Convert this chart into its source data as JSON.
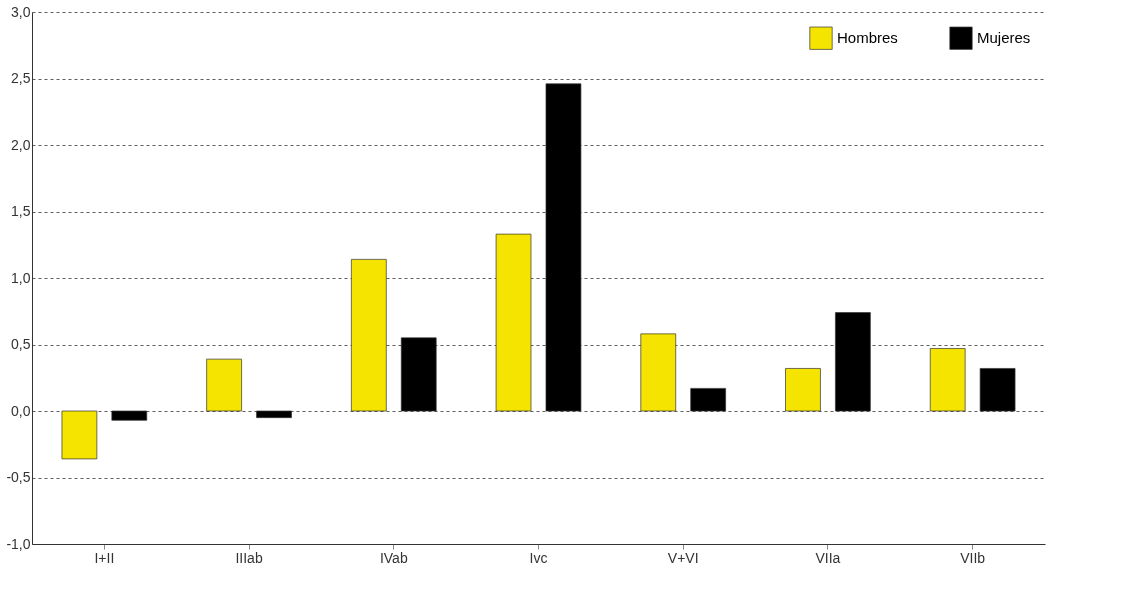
{
  "chart_data": {
    "type": "bar",
    "categories": [
      "I+II",
      "IIIab",
      "IVab",
      "Ivc",
      "V+VI",
      "VIIa",
      "VIIb"
    ],
    "series": [
      {
        "name": "Hombres",
        "color": "#f5e400",
        "values": [
          -0.36,
          0.39,
          1.14,
          1.33,
          0.58,
          0.32,
          0.47
        ]
      },
      {
        "name": "Mujeres",
        "color": "#000000",
        "values": [
          -0.07,
          -0.05,
          0.55,
          2.46,
          0.17,
          0.74,
          0.32
        ]
      }
    ],
    "ylim": [
      -1.0,
      3.0
    ],
    "yticks": [
      {
        "value": -1.0,
        "label": "-1,0"
      },
      {
        "value": -0.5,
        "label": "-0,5"
      },
      {
        "value": 0.0,
        "label": "0,0"
      },
      {
        "value": 0.5,
        "label": "0,5"
      },
      {
        "value": 1.0,
        "label": "1,0"
      },
      {
        "value": 1.5,
        "label": "1,5"
      },
      {
        "value": 2.0,
        "label": "2,0"
      },
      {
        "value": 2.5,
        "label": "2,5"
      },
      {
        "value": 3.0,
        "label": "3,0"
      }
    ],
    "grid": "y",
    "legend": "top right"
  }
}
